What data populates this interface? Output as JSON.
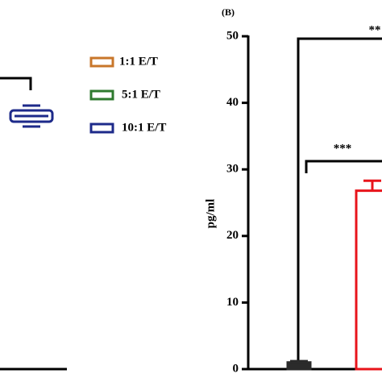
{
  "chart_data": {
    "type": "bar",
    "title": "(B)",
    "ylabel": "pg/ml",
    "categories": [
      null,
      null
    ],
    "values": [
      1,
      26.8
    ],
    "errors": [
      0.2,
      1.5
    ],
    "colors": [
      "#2b2b2b",
      "#e8141b"
    ],
    "ylim": [
      0,
      50
    ],
    "yticks": [
      0,
      10,
      20,
      30,
      40,
      50
    ],
    "annotations": [
      "***",
      "**"
    ]
  },
  "legend": [
    {
      "name": "1:1 E/T",
      "color": "#c8762a"
    },
    {
      "name": "5:1 E/T",
      "color": "#2e7a2e"
    },
    {
      "name": "10:1 E/T",
      "color": "#1d2a8a"
    }
  ]
}
